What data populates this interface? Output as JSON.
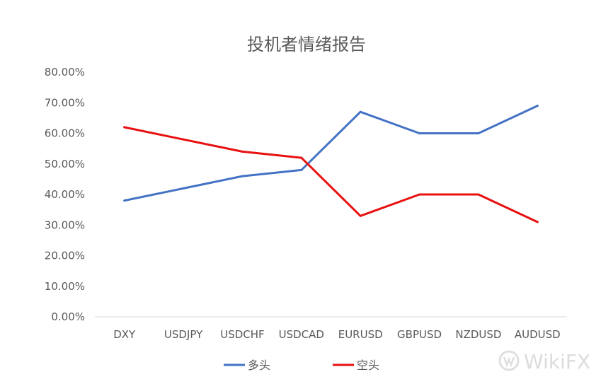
{
  "chart_data": {
    "type": "line",
    "title": "投机者情绪报告",
    "xlabel": "",
    "ylabel": "",
    "categories": [
      "DXY",
      "USDJPY",
      "USDCHF",
      "USDCAD",
      "EURUSD",
      "GBPUSD",
      "NZDUSD",
      "AUDUSD"
    ],
    "series": [
      {
        "name": "多头",
        "color": "#4472C4",
        "values": [
          0.38,
          0.42,
          0.46,
          0.48,
          0.67,
          0.6,
          0.6,
          0.69
        ]
      },
      {
        "name": "空头",
        "color": "#E81010",
        "values": [
          0.62,
          0.58,
          0.54,
          0.52,
          0.33,
          0.4,
          0.4,
          0.31
        ]
      }
    ],
    "ylim": [
      0,
      0.8
    ],
    "yticks": [
      0,
      0.1,
      0.2,
      0.3,
      0.4,
      0.5,
      0.6,
      0.7,
      0.8
    ],
    "ytick_labels": [
      "0.00%",
      "10.00%",
      "20.00%",
      "30.00%",
      "40.00%",
      "50.00%",
      "60.00%",
      "70.00%",
      "80.00%"
    ],
    "grid": false,
    "legend_position": "bottom"
  },
  "watermark": {
    "text": "WikiFX"
  }
}
